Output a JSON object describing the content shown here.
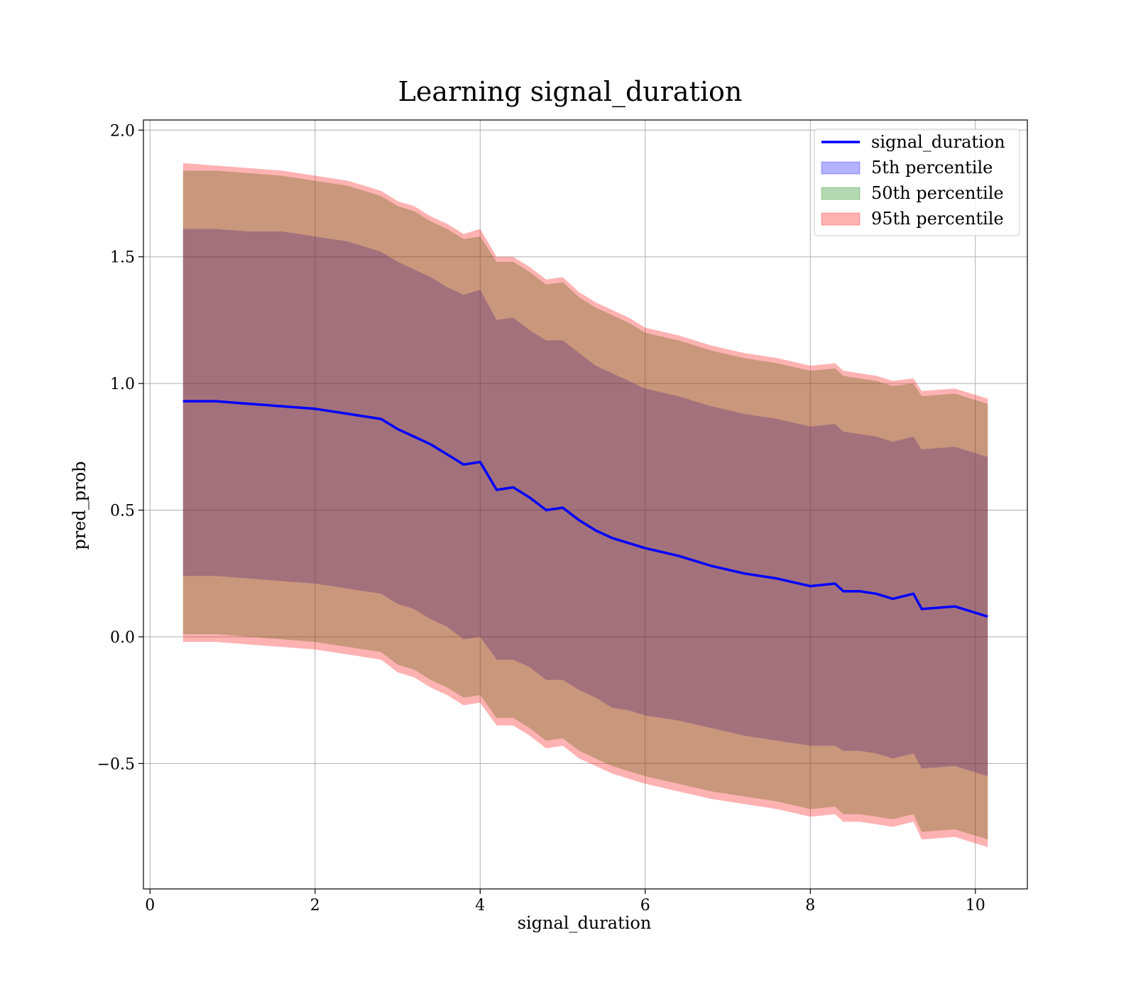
{
  "chart_data": {
    "type": "area",
    "title": "Learning signal_duration",
    "xlabel": "signal_duration",
    "ylabel": "pred_prob",
    "xlim": [
      -0.08,
      10.63
    ],
    "ylim": [
      -0.995,
      2.04
    ],
    "xticks": [
      0,
      2,
      4,
      6,
      8,
      10
    ],
    "xtick_labels": [
      "0",
      "2",
      "4",
      "6",
      "8",
      "10"
    ],
    "yticks": [
      -0.5,
      0.0,
      0.5,
      1.0,
      1.5,
      2.0
    ],
    "ytick_labels": [
      "−0.5",
      "0.0",
      "0.5",
      "1.0",
      "1.5",
      "2.0"
    ],
    "grid": true,
    "legend_position": "top-right",
    "x": [
      0.4,
      0.8,
      1.2,
      1.6,
      2.0,
      2.4,
      2.8,
      3.0,
      3.2,
      3.4,
      3.6,
      3.8,
      4.0,
      4.2,
      4.4,
      4.6,
      4.8,
      5.0,
      5.2,
      5.4,
      5.6,
      5.8,
      6.0,
      6.4,
      6.8,
      7.2,
      7.6,
      8.0,
      8.3,
      8.4,
      8.6,
      8.8,
      9.0,
      9.25,
      9.35,
      9.75,
      10.15
    ],
    "series": [
      {
        "name": "signal_duration",
        "kind": "line",
        "color": "#0000ff",
        "values": [
          0.93,
          0.93,
          0.92,
          0.91,
          0.9,
          0.88,
          0.86,
          0.82,
          0.79,
          0.76,
          0.72,
          0.68,
          0.69,
          0.58,
          0.59,
          0.55,
          0.5,
          0.51,
          0.46,
          0.42,
          0.39,
          0.37,
          0.35,
          0.32,
          0.28,
          0.25,
          0.23,
          0.2,
          0.21,
          0.18,
          0.18,
          0.17,
          0.15,
          0.17,
          0.11,
          0.12,
          0.08
        ]
      },
      {
        "name": "5th percentile",
        "kind": "band",
        "color": "#0000ff",
        "upper": [
          1.61,
          1.61,
          1.6,
          1.6,
          1.58,
          1.56,
          1.52,
          1.48,
          1.45,
          1.42,
          1.38,
          1.35,
          1.37,
          1.25,
          1.26,
          1.21,
          1.17,
          1.17,
          1.12,
          1.07,
          1.04,
          1.01,
          0.98,
          0.95,
          0.91,
          0.88,
          0.86,
          0.83,
          0.84,
          0.81,
          0.8,
          0.79,
          0.77,
          0.79,
          0.74,
          0.75,
          0.71
        ],
        "lower": [
          0.24,
          0.24,
          0.23,
          0.22,
          0.21,
          0.19,
          0.17,
          0.13,
          0.11,
          0.07,
          0.04,
          -0.01,
          0.0,
          -0.09,
          -0.09,
          -0.12,
          -0.17,
          -0.17,
          -0.21,
          -0.24,
          -0.28,
          -0.29,
          -0.31,
          -0.33,
          -0.36,
          -0.39,
          -0.41,
          -0.43,
          -0.43,
          -0.45,
          -0.45,
          -0.46,
          -0.48,
          -0.46,
          -0.52,
          -0.51,
          -0.55
        ]
      },
      {
        "name": "50th percentile",
        "kind": "band",
        "color": "#008000",
        "upper": [
          1.84,
          1.84,
          1.83,
          1.82,
          1.8,
          1.78,
          1.74,
          1.7,
          1.68,
          1.64,
          1.61,
          1.57,
          1.58,
          1.48,
          1.48,
          1.44,
          1.39,
          1.4,
          1.34,
          1.3,
          1.27,
          1.24,
          1.2,
          1.17,
          1.13,
          1.1,
          1.08,
          1.05,
          1.06,
          1.03,
          1.02,
          1.01,
          0.99,
          1.0,
          0.95,
          0.96,
          0.92
        ],
        "lower": [
          0.01,
          0.01,
          0.0,
          -0.01,
          -0.02,
          -0.04,
          -0.06,
          -0.11,
          -0.13,
          -0.17,
          -0.2,
          -0.24,
          -0.23,
          -0.32,
          -0.32,
          -0.36,
          -0.41,
          -0.4,
          -0.45,
          -0.48,
          -0.51,
          -0.53,
          -0.55,
          -0.58,
          -0.61,
          -0.63,
          -0.65,
          -0.68,
          -0.67,
          -0.7,
          -0.7,
          -0.71,
          -0.72,
          -0.7,
          -0.77,
          -0.76,
          -0.8
        ]
      },
      {
        "name": "95th percentile",
        "kind": "band",
        "color": "#ff0000",
        "upper": [
          1.87,
          1.86,
          1.85,
          1.84,
          1.82,
          1.8,
          1.76,
          1.72,
          1.7,
          1.66,
          1.63,
          1.59,
          1.61,
          1.5,
          1.5,
          1.46,
          1.41,
          1.42,
          1.36,
          1.32,
          1.29,
          1.26,
          1.22,
          1.19,
          1.15,
          1.12,
          1.1,
          1.07,
          1.08,
          1.05,
          1.04,
          1.03,
          1.01,
          1.02,
          0.97,
          0.98,
          0.94
        ],
        "lower": [
          -0.02,
          -0.02,
          -0.03,
          -0.04,
          -0.05,
          -0.07,
          -0.09,
          -0.14,
          -0.16,
          -0.2,
          -0.23,
          -0.27,
          -0.26,
          -0.35,
          -0.35,
          -0.39,
          -0.44,
          -0.43,
          -0.48,
          -0.51,
          -0.54,
          -0.56,
          -0.58,
          -0.61,
          -0.64,
          -0.66,
          -0.68,
          -0.71,
          -0.7,
          -0.73,
          -0.73,
          -0.74,
          -0.75,
          -0.73,
          -0.8,
          -0.79,
          -0.83
        ]
      }
    ]
  }
}
